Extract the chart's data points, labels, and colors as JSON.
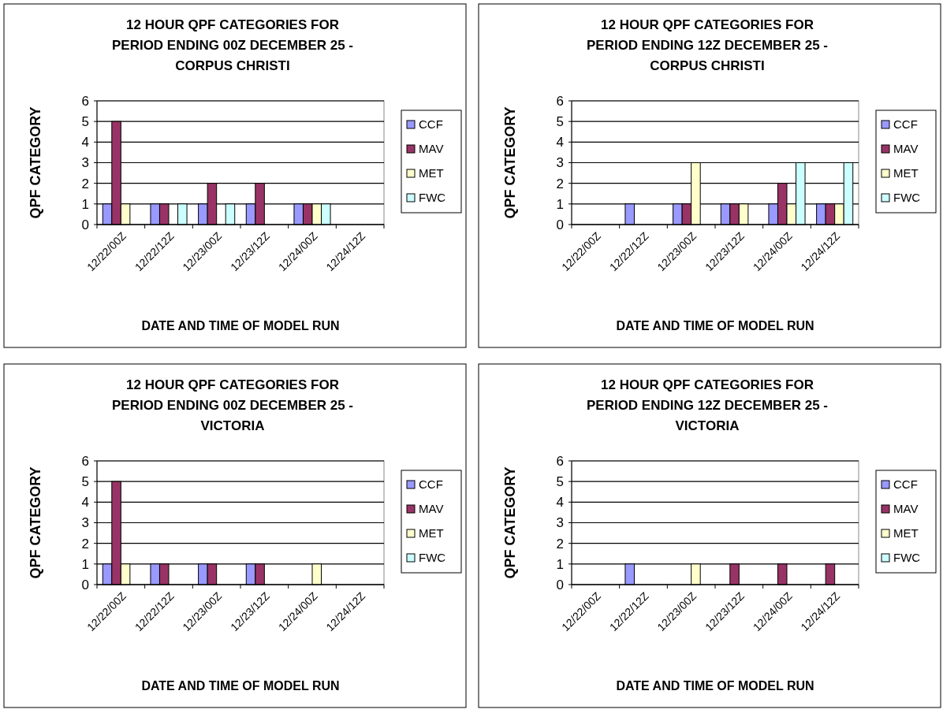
{
  "chart_data": [
    {
      "type": "bar",
      "title": "12 HOUR QPF CATEGORIES FOR PERIOD ENDING 00Z DECEMBER 25 - CORPUS CHRISTI",
      "xlabel": "DATE AND TIME OF MODEL RUN",
      "ylabel": "QPF CATEGORY",
      "categories": [
        "12/22/00Z",
        "12/22/12Z",
        "12/23/00Z",
        "12/23/12Z",
        "12/24/00Z",
        "12/24/12Z"
      ],
      "series": [
        {
          "name": "CCF",
          "color": "#9999ff",
          "values": [
            1,
            1,
            1,
            1,
            1,
            0
          ]
        },
        {
          "name": "MAV",
          "color": "#993366",
          "values": [
            5,
            1,
            2,
            2,
            1,
            0
          ]
        },
        {
          "name": "MET",
          "color": "#ffffcc",
          "values": [
            1,
            0,
            0,
            0,
            1,
            0
          ]
        },
        {
          "name": "FWC",
          "color": "#ccffff",
          "values": [
            0,
            1,
            1,
            0,
            1,
            0
          ]
        }
      ],
      "ylim": [
        0,
        6
      ],
      "yticks": [
        0,
        1,
        2,
        3,
        4,
        5,
        6
      ],
      "grid": "y",
      "legend": "right"
    },
    {
      "type": "bar",
      "title": "12 HOUR QPF CATEGORIES FOR PERIOD ENDING 12Z DECEMBER 25 - CORPUS CHRISTI",
      "xlabel": "DATE AND TIME OF MODEL RUN",
      "ylabel": "QPF CATEGORY",
      "categories": [
        "12/22/00Z",
        "12/22/12Z",
        "12/23/00Z",
        "12/23/12Z",
        "12/24/00Z",
        "12/24/12Z"
      ],
      "series": [
        {
          "name": "CCF",
          "color": "#9999ff",
          "values": [
            0,
            1,
            1,
            1,
            1,
            1
          ]
        },
        {
          "name": "MAV",
          "color": "#993366",
          "values": [
            0,
            0,
            1,
            1,
            2,
            1
          ]
        },
        {
          "name": "MET",
          "color": "#ffffcc",
          "values": [
            0,
            0,
            3,
            1,
            1,
            1
          ]
        },
        {
          "name": "FWC",
          "color": "#ccffff",
          "values": [
            0,
            0,
            0,
            0,
            3,
            3
          ]
        }
      ],
      "ylim": [
        0,
        6
      ],
      "yticks": [
        0,
        1,
        2,
        3,
        4,
        5,
        6
      ],
      "grid": "y",
      "legend": "right"
    },
    {
      "type": "bar",
      "title": "12 HOUR QPF CATEGORIES FOR PERIOD ENDING 00Z DECEMBER 25 - VICTORIA",
      "xlabel": "DATE AND TIME OF MODEL RUN",
      "ylabel": "QPF CATEGORY",
      "categories": [
        "12/22/00Z",
        "12/22/12Z",
        "12/23/00Z",
        "12/23/12Z",
        "12/24/00Z",
        "12/24/12Z"
      ],
      "series": [
        {
          "name": "CCF",
          "color": "#9999ff",
          "values": [
            1,
            1,
            1,
            1,
            0,
            0
          ]
        },
        {
          "name": "MAV",
          "color": "#993366",
          "values": [
            5,
            1,
            1,
            1,
            0,
            0
          ]
        },
        {
          "name": "MET",
          "color": "#ffffcc",
          "values": [
            1,
            0,
            0,
            0,
            1,
            0
          ]
        },
        {
          "name": "FWC",
          "color": "#ccffff",
          "values": [
            0,
            0,
            0,
            0,
            0,
            0
          ]
        }
      ],
      "ylim": [
        0,
        6
      ],
      "yticks": [
        0,
        1,
        2,
        3,
        4,
        5,
        6
      ],
      "grid": "y",
      "legend": "right"
    },
    {
      "type": "bar",
      "title": "12 HOUR QPF CATEGORIES FOR PERIOD ENDING 12Z DECEMBER 25 - VICTORIA",
      "xlabel": "DATE AND TIME OF MODEL RUN",
      "ylabel": "QPF CATEGORY",
      "categories": [
        "12/22/00Z",
        "12/22/12Z",
        "12/23/00Z",
        "12/23/12Z",
        "12/24/00Z",
        "12/24/12Z"
      ],
      "series": [
        {
          "name": "CCF",
          "color": "#9999ff",
          "values": [
            0,
            1,
            0,
            0,
            0,
            0
          ]
        },
        {
          "name": "MAV",
          "color": "#993366",
          "values": [
            0,
            0,
            0,
            1,
            1,
            1
          ]
        },
        {
          "name": "MET",
          "color": "#ffffcc",
          "values": [
            0,
            0,
            1,
            0,
            0,
            0
          ]
        },
        {
          "name": "FWC",
          "color": "#ccffff",
          "values": [
            0,
            0,
            0,
            0,
            0,
            0
          ]
        }
      ],
      "ylim": [
        0,
        6
      ],
      "yticks": [
        0,
        1,
        2,
        3,
        4,
        5,
        6
      ],
      "grid": "y",
      "legend": "right"
    }
  ]
}
